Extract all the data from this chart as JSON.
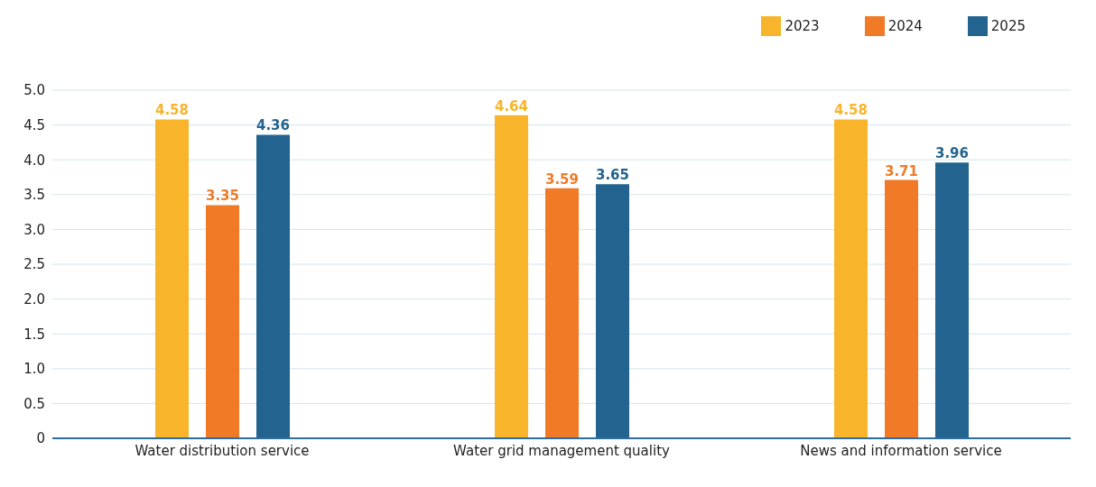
{
  "chart_data": {
    "type": "bar",
    "categories": [
      "Water distribution service",
      "Water grid management quality",
      "News and information service"
    ],
    "series": [
      {
        "name": "2023",
        "color": "#f8b42a",
        "values": [
          4.58,
          4.64,
          4.58
        ]
      },
      {
        "name": "2024",
        "color": "#f07a26",
        "values": [
          3.35,
          3.59,
          3.71
        ]
      },
      {
        "name": "2025",
        "color": "#23638f",
        "values": [
          4.36,
          3.65,
          3.96
        ]
      }
    ],
    "ylim": [
      0,
      5
    ],
    "yticks": [
      0,
      {
        "value": 0.5,
        "label": "0.5"
      },
      {
        "value": 1,
        "label": "1.0"
      },
      {
        "value": 1.5,
        "label": "1.5"
      },
      {
        "value": 2,
        "label": "2.0"
      },
      {
        "value": 2.5,
        "label": "2.5"
      },
      {
        "value": 3,
        "label": "3.0"
      },
      {
        "value": 3.5,
        "label": "3.5"
      },
      {
        "value": 4,
        "label": "4.0"
      },
      {
        "value": 4.5,
        "label": "4.5"
      },
      {
        "value": 5,
        "label": "5.0"
      }
    ],
    "grid": "y",
    "legend": "top right",
    "data_labels": true
  }
}
